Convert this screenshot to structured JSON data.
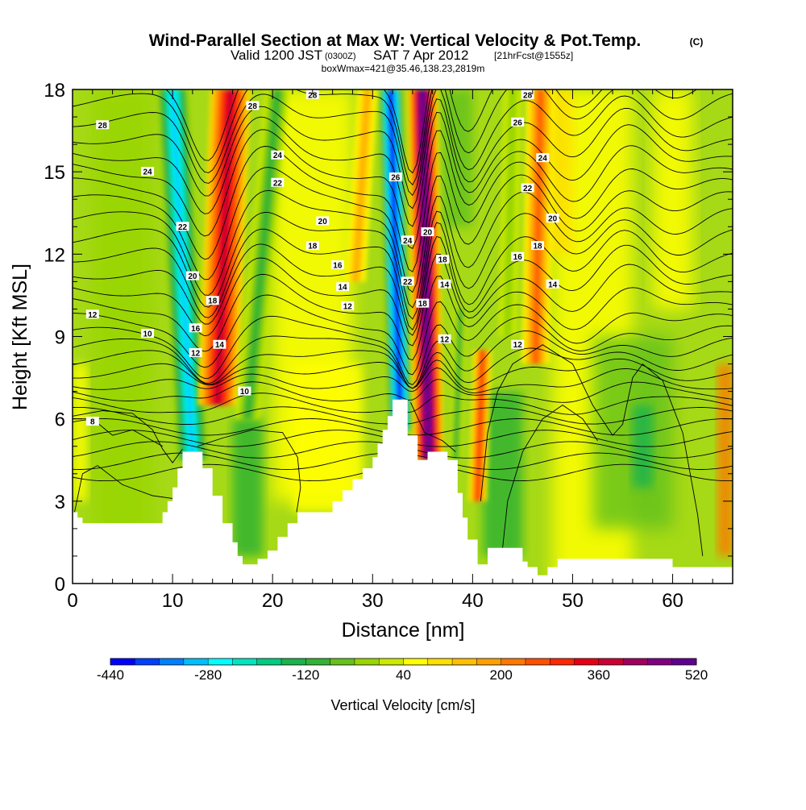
{
  "title": {
    "main": "Wind-Parallel Section at Max W: Vertical Velocity & Pot.Temp.",
    "copyright": "(C)",
    "valid_prefix": "Valid 1200 JST",
    "valid_utc": "(0300Z)",
    "valid_date": "SAT 7 Apr 2012",
    "forecast": "[21hrFcst@1555z]",
    "box_info": "boxWmax=421@35.46,138.23,2819m"
  },
  "chart_data": {
    "type": "heatmap",
    "xlabel": "Distance [nm]",
    "ylabel": "Height [Kft MSL]",
    "xlim": [
      0,
      66
    ],
    "ylim": [
      0,
      18
    ],
    "x_ticks": [
      "0",
      "10",
      "20",
      "30",
      "40",
      "50",
      "60"
    ],
    "y_ticks": [
      "0",
      "3",
      "6",
      "9",
      "12",
      "15",
      "18"
    ],
    "colorbar": {
      "label": "Vertical Velocity [cm/s]",
      "range": [
        -440,
        520
      ],
      "tick_labels": [
        "-440",
        "-280",
        "-120",
        "40",
        "200",
        "360",
        "520"
      ],
      "colors": [
        "#0000ff",
        "#0040ff",
        "#0080ff",
        "#00bfff",
        "#00ffff",
        "#00e6bf",
        "#00cc80",
        "#1ab34d",
        "#33b333",
        "#66c21a",
        "#99d600",
        "#ccea00",
        "#ffff00",
        "#ffe000",
        "#ffc000",
        "#ffa000",
        "#ff7800",
        "#ff5000",
        "#ff2800",
        "#e60014",
        "#cc0033",
        "#a00060",
        "#800080",
        "#600090"
      ]
    },
    "updrafts": [
      {
        "name": "updraft-1",
        "x_base": 12,
        "x_top": 16,
        "w_max": 380
      },
      {
        "name": "updraft-2",
        "x_base": 36,
        "x_top": 35,
        "w_max": 520
      },
      {
        "name": "updraft-3",
        "x_base": 41,
        "x_top": 47,
        "w_max": 240
      }
    ],
    "downdrafts": [
      {
        "name": "downdraft-1",
        "x_base": 13.5,
        "x_top": 10,
        "w_min": -300
      },
      {
        "name": "downdraft-2",
        "x_base": 34,
        "x_top": 32,
        "w_min": -440
      }
    ],
    "theta_contour_labels": [
      "8",
      "10",
      "12",
      "14",
      "16",
      "18",
      "20",
      "22",
      "24",
      "26",
      "28"
    ],
    "contour_annotations": [
      {
        "text": "28",
        "x": 3,
        "y": 16.7
      },
      {
        "text": "24",
        "x": 7.5,
        "y": 15
      },
      {
        "text": "22",
        "x": 11,
        "y": 13
      },
      {
        "text": "20",
        "x": 12,
        "y": 11.2
      },
      {
        "text": "18",
        "x": 14,
        "y": 10.3
      },
      {
        "text": "16",
        "x": 12.3,
        "y": 9.3
      },
      {
        "text": "14",
        "x": 14.7,
        "y": 8.7
      },
      {
        "text": "12",
        "x": 12.3,
        "y": 8.4
      },
      {
        "text": "12",
        "x": 2,
        "y": 9.8
      },
      {
        "text": "10",
        "x": 7.5,
        "y": 9.1
      },
      {
        "text": "10",
        "x": 17.2,
        "y": 7
      },
      {
        "text": "8",
        "x": 2,
        "y": 5.9
      },
      {
        "text": "28",
        "x": 18,
        "y": 17.4
      },
      {
        "text": "28",
        "x": 24,
        "y": 17.8
      },
      {
        "text": "24",
        "x": 20.5,
        "y": 15.6
      },
      {
        "text": "22",
        "x": 20.5,
        "y": 14.6
      },
      {
        "text": "20",
        "x": 25,
        "y": 13.2
      },
      {
        "text": "18",
        "x": 24,
        "y": 12.3
      },
      {
        "text": "16",
        "x": 26.5,
        "y": 11.6
      },
      {
        "text": "14",
        "x": 27,
        "y": 10.8
      },
      {
        "text": "12",
        "x": 27.5,
        "y": 10.1
      },
      {
        "text": "26",
        "x": 32.3,
        "y": 14.8
      },
      {
        "text": "24",
        "x": 33.5,
        "y": 12.5
      },
      {
        "text": "22",
        "x": 33.5,
        "y": 11
      },
      {
        "text": "20",
        "x": 35.5,
        "y": 12.8
      },
      {
        "text": "18",
        "x": 35,
        "y": 10.2
      },
      {
        "text": "18",
        "x": 37,
        "y": 11.8
      },
      {
        "text": "14",
        "x": 37.2,
        "y": 10.9
      },
      {
        "text": "12",
        "x": 37.2,
        "y": 8.9
      },
      {
        "text": "28",
        "x": 45.5,
        "y": 17.8
      },
      {
        "text": "26",
        "x": 44.5,
        "y": 16.8
      },
      {
        "text": "24",
        "x": 47,
        "y": 15.5
      },
      {
        "text": "22",
        "x": 45.5,
        "y": 14.4
      },
      {
        "text": "20",
        "x": 48,
        "y": 13.3
      },
      {
        "text": "18",
        "x": 46.5,
        "y": 12.3
      },
      {
        "text": "16",
        "x": 44.5,
        "y": 11.9
      },
      {
        "text": "14",
        "x": 48,
        "y": 10.9
      },
      {
        "text": "12",
        "x": 44.5,
        "y": 8.7
      }
    ],
    "terrain": [
      [
        0,
        2.6
      ],
      [
        0.5,
        2.6
      ],
      [
        0.5,
        2.4
      ],
      [
        1,
        2.4
      ],
      [
        1,
        2.2
      ],
      [
        9,
        2.2
      ],
      [
        9,
        2.6
      ],
      [
        9.5,
        2.6
      ],
      [
        9.5,
        3
      ],
      [
        10,
        3
      ],
      [
        10,
        3.5
      ],
      [
        10.5,
        3.5
      ],
      [
        10.5,
        4.2
      ],
      [
        11,
        4.2
      ],
      [
        11,
        4.8
      ],
      [
        13,
        4.8
      ],
      [
        13,
        4.2
      ],
      [
        14,
        4.2
      ],
      [
        14,
        3.2
      ],
      [
        15,
        3.2
      ],
      [
        15,
        2.2
      ],
      [
        16,
        2.2
      ],
      [
        16,
        1.5
      ],
      [
        16.5,
        1.5
      ],
      [
        16.5,
        1
      ],
      [
        17,
        1
      ],
      [
        17,
        0.7
      ],
      [
        18.5,
        0.7
      ],
      [
        18.5,
        0.9
      ],
      [
        19.5,
        0.9
      ],
      [
        19.5,
        1.2
      ],
      [
        20.5,
        1.2
      ],
      [
        20.5,
        1.7
      ],
      [
        21.5,
        1.7
      ],
      [
        21.5,
        2.2
      ],
      [
        22.5,
        2.2
      ],
      [
        22.5,
        2.6
      ],
      [
        26,
        2.6
      ],
      [
        26,
        3
      ],
      [
        27,
        3
      ],
      [
        27,
        3.4
      ],
      [
        28,
        3.4
      ],
      [
        28,
        3.8
      ],
      [
        29,
        3.8
      ],
      [
        29,
        4.2
      ],
      [
        30,
        4.2
      ],
      [
        30,
        4.6
      ],
      [
        30.5,
        4.6
      ],
      [
        30.5,
        5.1
      ],
      [
        31,
        5.1
      ],
      [
        31,
        5.6
      ],
      [
        31.5,
        5.6
      ],
      [
        31.5,
        6.1
      ],
      [
        32,
        6.1
      ],
      [
        32,
        6.7
      ],
      [
        33.5,
        6.7
      ],
      [
        33.5,
        5.4
      ],
      [
        34.5,
        5.4
      ],
      [
        34.5,
        4.5
      ],
      [
        35.5,
        4.5
      ],
      [
        35.5,
        4.8
      ],
      [
        37.5,
        4.8
      ],
      [
        37.5,
        4.5
      ],
      [
        38.5,
        4.5
      ],
      [
        38.5,
        3.3
      ],
      [
        39,
        3.3
      ],
      [
        39,
        2.4
      ],
      [
        39.5,
        2.4
      ],
      [
        39.5,
        1.6
      ],
      [
        40.5,
        1.6
      ],
      [
        40.5,
        0.7
      ],
      [
        41.5,
        0.7
      ],
      [
        41.5,
        1.3
      ],
      [
        45,
        1.3
      ],
      [
        45,
        0.8
      ],
      [
        45.5,
        0.8
      ],
      [
        45.5,
        0.6
      ],
      [
        46.5,
        0.6
      ],
      [
        46.5,
        0.3
      ],
      [
        47.5,
        0.3
      ],
      [
        47.5,
        0.6
      ],
      [
        48.5,
        0.6
      ],
      [
        48.5,
        0.9
      ],
      [
        60,
        0.9
      ],
      [
        60,
        0.6
      ],
      [
        66,
        0.6
      ]
    ]
  }
}
